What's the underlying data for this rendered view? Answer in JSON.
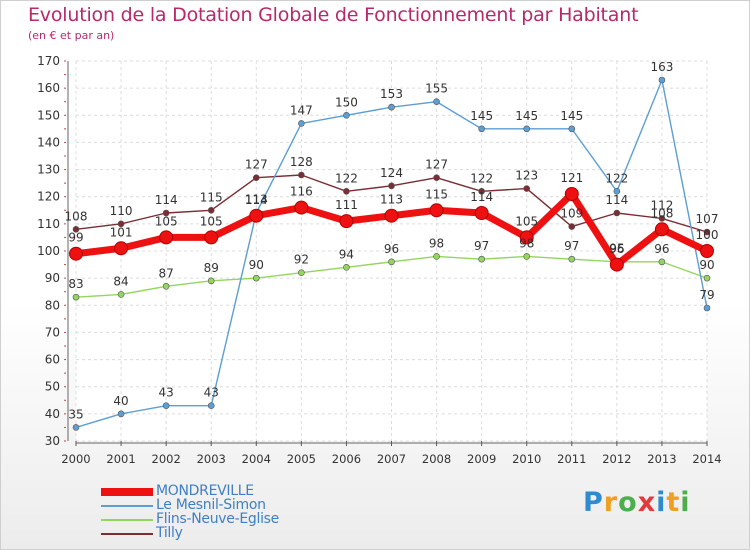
{
  "title": "Evolution de la Dotation Globale de Fonctionnement par Habitant",
  "subtitle": "(en € et par an)",
  "brand": {
    "text": "Proxiti",
    "letters": [
      {
        "ch": "P",
        "color": "#2e8bd0"
      },
      {
        "ch": "r",
        "color": "#f0a020"
      },
      {
        "ch": "o",
        "color": "#4cae4c"
      },
      {
        "ch": "x",
        "color": "#e23a3a"
      },
      {
        "ch": "i",
        "color": "#2e8bd0"
      },
      {
        "ch": "t",
        "color": "#f0a020"
      },
      {
        "ch": "i",
        "color": "#4cae4c"
      }
    ]
  },
  "chart_data": {
    "type": "line",
    "x": [
      2000,
      2001,
      2002,
      2003,
      2004,
      2005,
      2006,
      2007,
      2008,
      2009,
      2010,
      2011,
      2012,
      2013,
      2014
    ],
    "ylim": [
      30,
      170
    ],
    "yticks": [
      30,
      40,
      50,
      60,
      70,
      80,
      90,
      100,
      110,
      120,
      130,
      140,
      150,
      160,
      170
    ],
    "xlabel": "",
    "ylabel": "",
    "grid": true,
    "series": [
      {
        "name": "MONDREVILLE",
        "color": "#ee1111",
        "values": [
          99,
          101,
          105,
          105,
          113,
          116,
          111,
          113,
          115,
          114,
          105,
          121,
          95,
          108,
          100
        ]
      },
      {
        "name": "Le Mesnil-Simon",
        "color": "#5d9ed3",
        "values": [
          35,
          40,
          43,
          43,
          114,
          147,
          150,
          153,
          155,
          145,
          145,
          145,
          122,
          163,
          79
        ]
      },
      {
        "name": "Flins-Neuve-Eglise",
        "color": "#93d65e",
        "values": [
          83,
          84,
          87,
          89,
          90,
          92,
          94,
          96,
          98,
          97,
          98,
          97,
          96,
          96,
          90
        ]
      },
      {
        "name": "Tilly",
        "color": "#7a2e34",
        "values": [
          108,
          110,
          114,
          115,
          127,
          128,
          122,
          124,
          127,
          122,
          123,
          109,
          114,
          112,
          107
        ]
      }
    ]
  },
  "legend": {
    "items": [
      {
        "label": "MONDREVILLE",
        "color": "#ee1111"
      },
      {
        "label": "Le Mesnil-Simon",
        "color": "#5d9ed3"
      },
      {
        "label": "Flins-Neuve-Eglise",
        "color": "#93d65e"
      },
      {
        "label": "Tilly",
        "color": "#7a2e34"
      }
    ]
  }
}
